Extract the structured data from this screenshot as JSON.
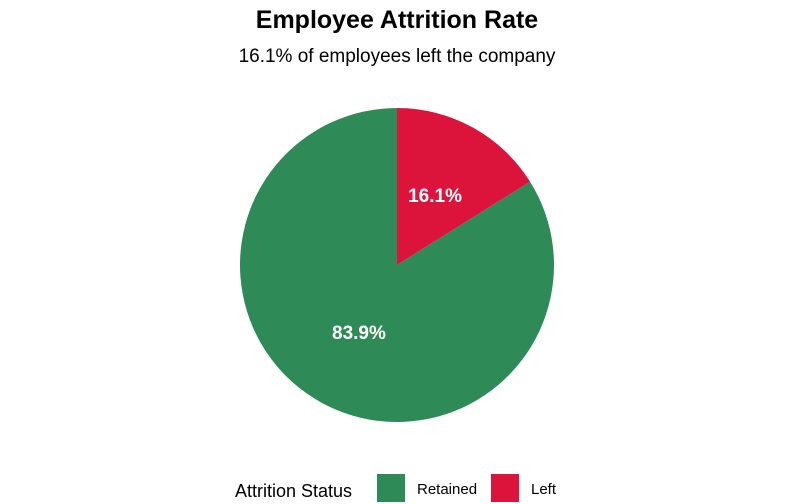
{
  "chart_data": {
    "type": "pie",
    "title": "Employee Attrition Rate",
    "subtitle": "16.1% of employees left the company",
    "slices": [
      {
        "name": "Left",
        "value": 16.1,
        "label": "16.1%",
        "color": "#DC143C"
      },
      {
        "name": "Retained",
        "value": 83.9,
        "label": "83.9%",
        "color": "#2E8B57"
      }
    ],
    "start_angle": "12 o'clock",
    "direction": "clockwise",
    "legend": {
      "title": "Attrition Status",
      "position": "bottom",
      "entries": [
        {
          "name": "Retained",
          "color": "#2E8B57"
        },
        {
          "name": "Left",
          "color": "#DC143C"
        }
      ]
    }
  }
}
